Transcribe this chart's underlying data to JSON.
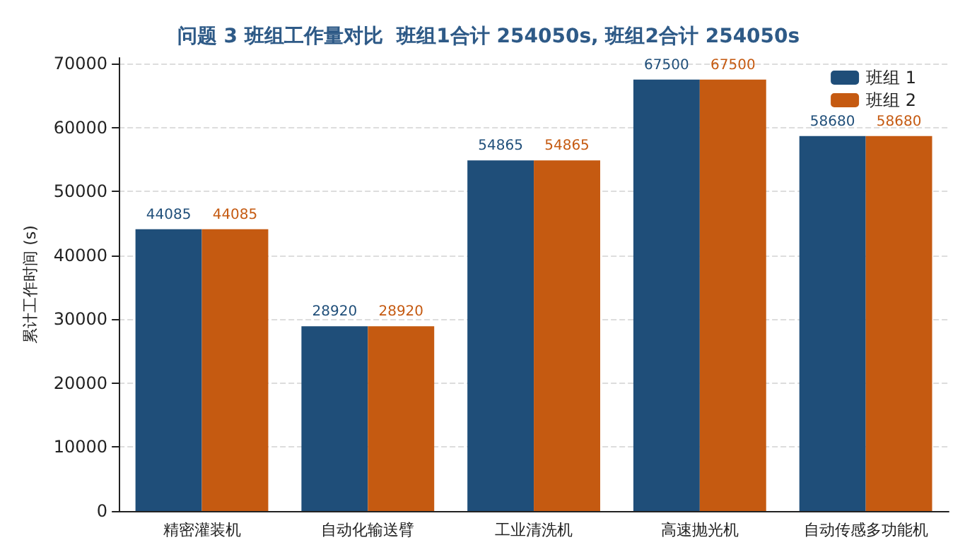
{
  "chart_data": {
    "type": "bar",
    "title": "问题 3 班组工作量对比  班组1合计 254050s, 班组2合计 254050s",
    "ylabel": "累计工作时间 (s)",
    "categories": [
      "精密灌装机",
      "自动化输送臂",
      "工业清洗机",
      "高速抛光机",
      "自动传感多功能机"
    ],
    "series": [
      {
        "name": "班组 1",
        "color": "#1f4e79",
        "values": [
          44085,
          28920,
          54865,
          67500,
          58680
        ]
      },
      {
        "name": "班组 2",
        "color": "#c55a11",
        "values": [
          44085,
          28920,
          54865,
          67500,
          58680
        ]
      }
    ],
    "ylim": [
      0,
      70900
    ],
    "yticks": [
      0,
      10000,
      20000,
      30000,
      40000,
      50000,
      60000,
      70000
    ],
    "grid": "y",
    "legend": "top right",
    "data_labels": true
  }
}
